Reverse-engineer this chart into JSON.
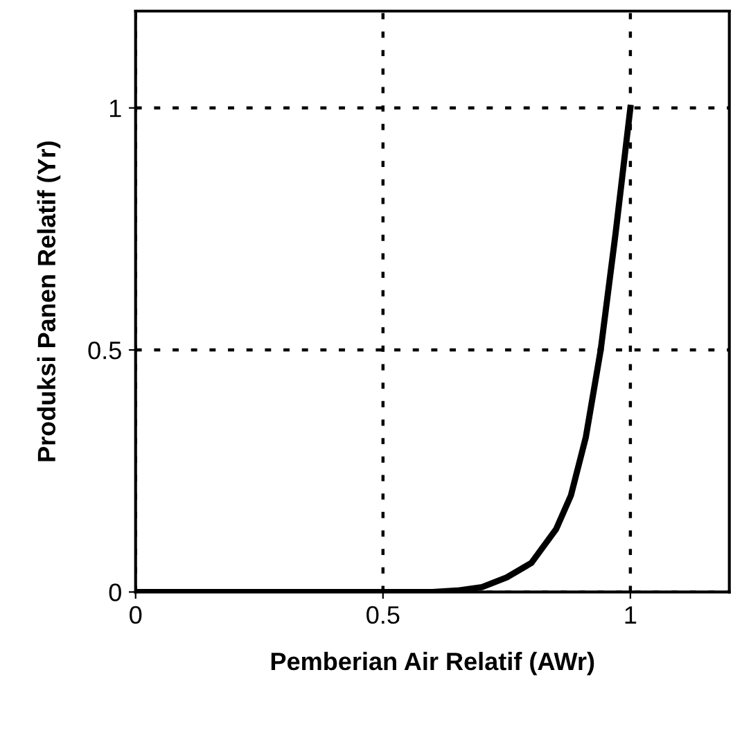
{
  "chart_data": {
    "type": "line",
    "xlabel": "Pemberian Air Relatif (AWr)",
    "ylabel": "Produksi Panen Relatif (Yr)",
    "xlim": [
      0,
      1.2
    ],
    "ylim": [
      0,
      1.2
    ],
    "xticks": [
      0,
      0.5,
      1
    ],
    "yticks": [
      0,
      0.5,
      1
    ],
    "grid": true,
    "marker": "none",
    "line_style": "solid",
    "series": [
      {
        "color": "#000000",
        "x": [
          0,
          0.6,
          0.65,
          0.7,
          0.75,
          0.8,
          0.85,
          0.88,
          0.91,
          0.94,
          0.97,
          1.0
        ],
        "values": [
          0,
          0,
          0.003,
          0.01,
          0.03,
          0.06,
          0.13,
          0.2,
          0.32,
          0.5,
          0.74,
          1.0
        ]
      }
    ]
  }
}
